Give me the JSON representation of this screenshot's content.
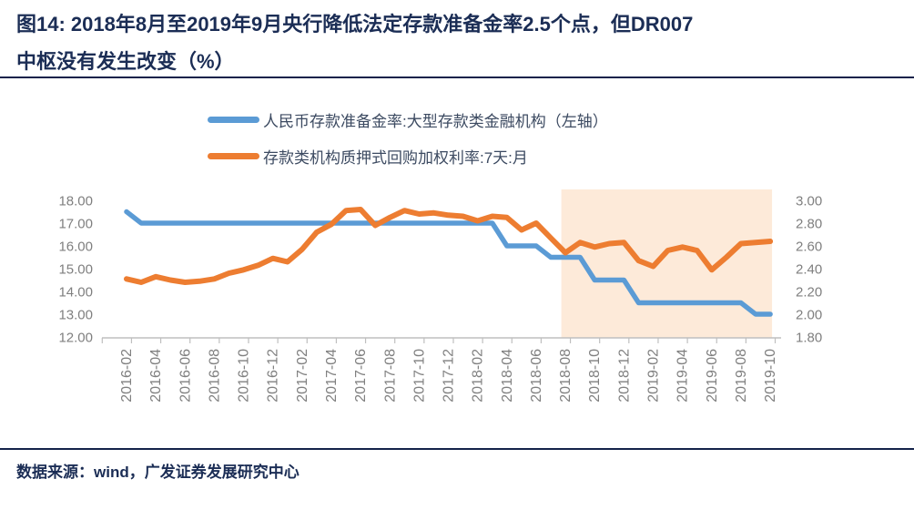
{
  "header": {
    "title_line1": "图14:  2018年8月至2019年9月央行降低法定存款准备金率2.5个点，但DR007",
    "title_line2": "中枢没有发生改变（%）"
  },
  "footer": {
    "source": "数据来源：wind，广发证券发展研究中心"
  },
  "colors": {
    "title_navy": "#1b2d55",
    "rule": "#14224a",
    "legend_text": "#3c4a61",
    "axis_gray": "#bfbfbf",
    "tick_label_gray": "#7f7f7f",
    "series_blue": "#5b9bd5",
    "series_orange": "#ed7d31",
    "highlight_fill": "#fdead9"
  },
  "chart_data": {
    "type": "line",
    "x": [
      "2016-02",
      "2016-03",
      "2016-04",
      "2016-05",
      "2016-06",
      "2016-07",
      "2016-08",
      "2016-09",
      "2016-10",
      "2016-11",
      "2016-12",
      "2017-01",
      "2017-02",
      "2017-03",
      "2017-04",
      "2017-05",
      "2017-06",
      "2017-07",
      "2017-08",
      "2017-09",
      "2017-10",
      "2017-11",
      "2017-12",
      "2018-01",
      "2018-02",
      "2018-03",
      "2018-04",
      "2018-05",
      "2018-06",
      "2018-07",
      "2018-08",
      "2018-09",
      "2018-10",
      "2018-11",
      "2018-12",
      "2019-01",
      "2019-02",
      "2019-03",
      "2019-04",
      "2019-05",
      "2019-06",
      "2019-07",
      "2019-08",
      "2019-09",
      "2019-10"
    ],
    "x_label_every": 2,
    "series": [
      {
        "name": "人民币存款准备金率:大型存款类金融机构（左轴）",
        "axis": "left",
        "color": "#5b9bd5",
        "values": [
          17.5,
          17.0,
          17.0,
          17.0,
          17.0,
          17.0,
          17.0,
          17.0,
          17.0,
          17.0,
          17.0,
          17.0,
          17.0,
          17.0,
          17.0,
          17.0,
          17.0,
          17.0,
          17.0,
          17.0,
          17.0,
          17.0,
          17.0,
          17.0,
          17.0,
          17.0,
          16.0,
          16.0,
          16.0,
          15.5,
          15.5,
          15.5,
          14.5,
          14.5,
          14.5,
          13.5,
          13.5,
          13.5,
          13.5,
          13.5,
          13.5,
          13.5,
          13.5,
          13.0,
          13.0
        ]
      },
      {
        "name": "存款类机构质押式回购加权利率:7天:月",
        "axis": "right",
        "color": "#ed7d31",
        "values": [
          2.31,
          2.28,
          2.33,
          2.3,
          2.28,
          2.29,
          2.31,
          2.36,
          2.39,
          2.43,
          2.49,
          2.46,
          2.57,
          2.72,
          2.79,
          2.91,
          2.92,
          2.78,
          2.85,
          2.91,
          2.88,
          2.89,
          2.87,
          2.86,
          2.82,
          2.86,
          2.85,
          2.74,
          2.8,
          2.67,
          2.54,
          2.63,
          2.59,
          2.62,
          2.63,
          2.47,
          2.42,
          2.56,
          2.59,
          2.56,
          2.39,
          2.5,
          2.62,
          2.63,
          2.64
        ]
      }
    ],
    "left_axis": {
      "min": 12.0,
      "max": 18.0,
      "step": 1.0,
      "tick_labels": [
        "18.00",
        "17.00",
        "16.00",
        "15.00",
        "14.00",
        "13.00",
        "12.00"
      ]
    },
    "right_axis": {
      "min": 1.8,
      "max": 3.0,
      "step": 0.2,
      "tick_labels": [
        "3.00",
        "2.80",
        "2.60",
        "2.40",
        "2.20",
        "2.00",
        "1.80"
      ]
    },
    "highlight_region": {
      "from": "2018-08",
      "to": "2019-10",
      "color": "#fdead9"
    },
    "legend_position": "top",
    "grid": "off"
  }
}
